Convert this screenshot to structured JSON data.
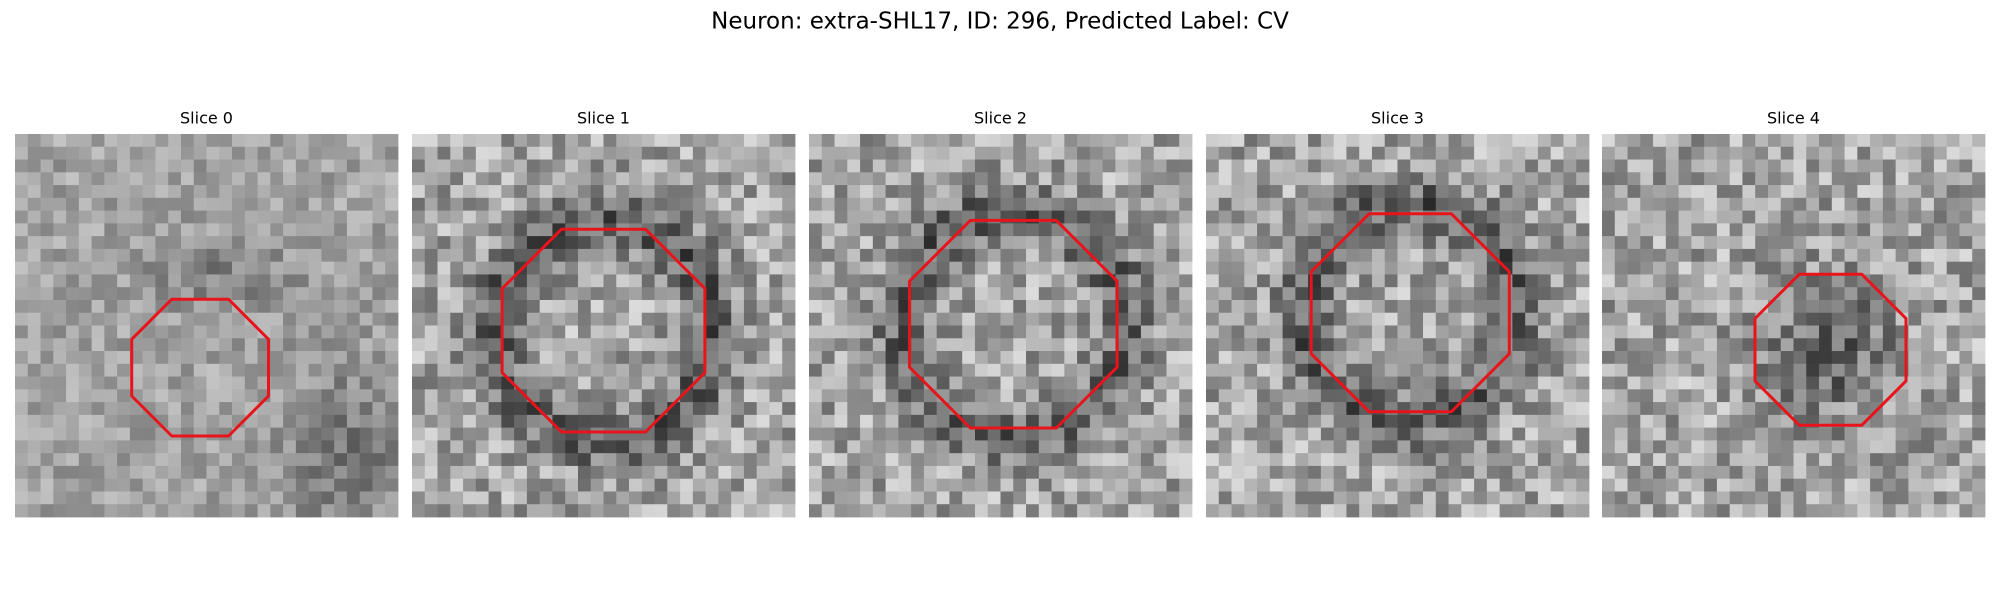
{
  "title": "Neuron: extra-SHL17, ID: 296, Predicted Label: CV",
  "panels": [
    {
      "title": "Slice 0"
    },
    {
      "title": "Slice 1"
    },
    {
      "title": "Slice 2"
    },
    {
      "title": "Slice 3"
    },
    {
      "title": "Slice 4"
    }
  ]
}
